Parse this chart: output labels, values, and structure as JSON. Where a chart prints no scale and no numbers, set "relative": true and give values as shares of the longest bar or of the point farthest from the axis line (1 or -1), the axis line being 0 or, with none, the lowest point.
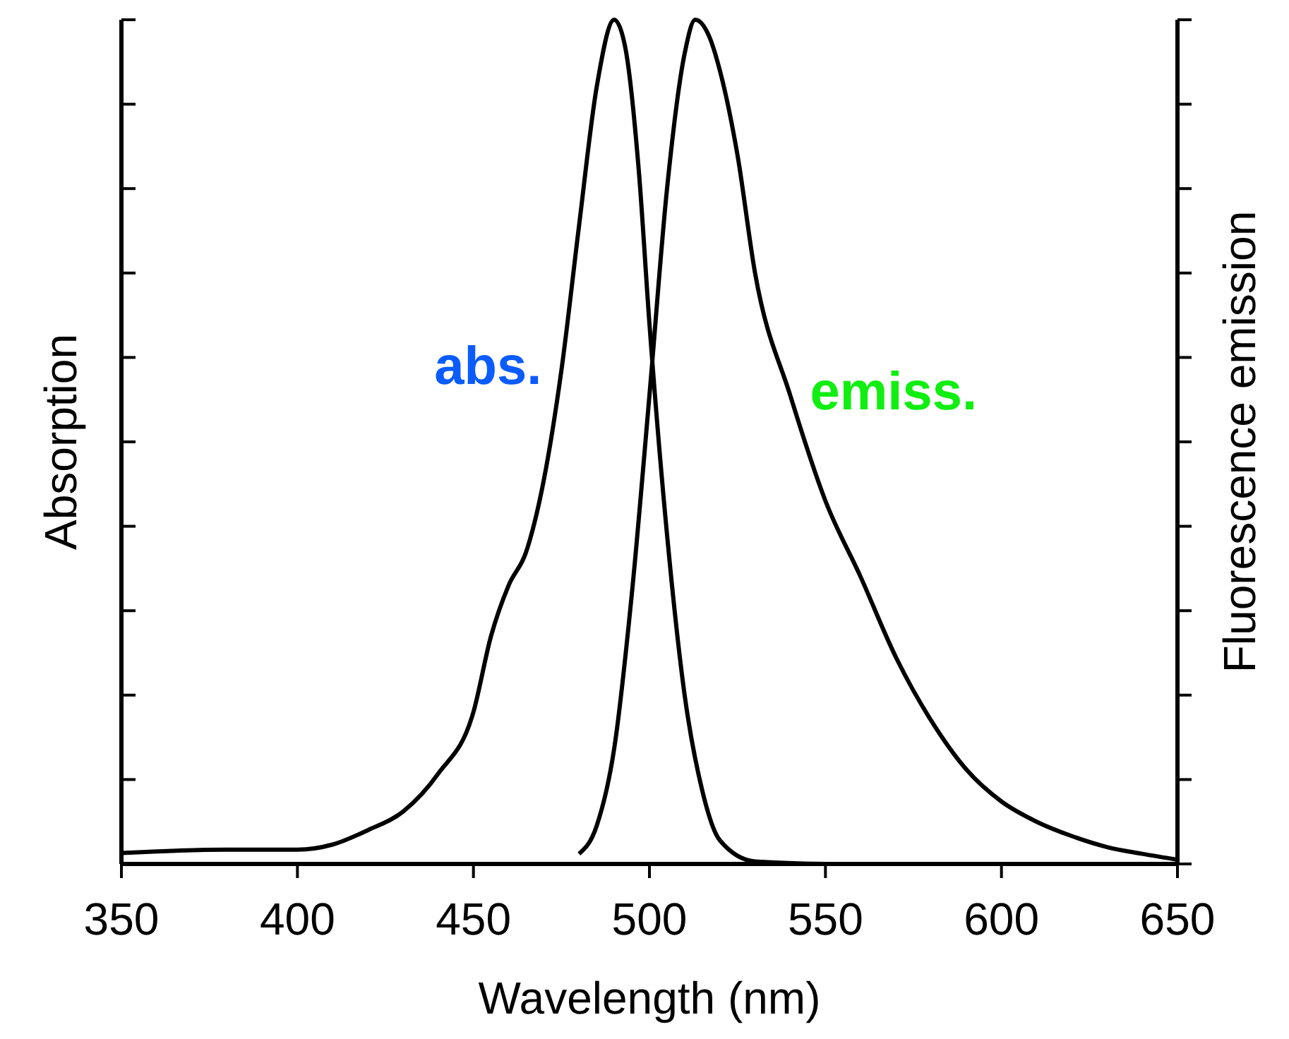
{
  "chart_data": {
    "type": "line",
    "relative": true,
    "xlabel": "Wavelength (nm)",
    "ylabel": "Absorption",
    "y2label": "Fluorescence emission",
    "xlim": [
      350,
      650
    ],
    "xticks": [
      350,
      400,
      450,
      500,
      550,
      600,
      650
    ],
    "grid": false,
    "marker": "none",
    "line_style": "solid",
    "series": [
      {
        "name": "abs.",
        "color": "#000000",
        "x": [
          350,
          380,
          400,
          410,
          420,
          430,
          440,
          450,
          455,
          460,
          465,
          470,
          475,
          480,
          485,
          490,
          493,
          497,
          500,
          505,
          510,
          515,
          520,
          530,
          550
        ],
        "values": [
          0.013,
          0.017,
          0.017,
          0.023,
          0.04,
          0.062,
          0.107,
          0.18,
          0.27,
          0.33,
          0.37,
          0.455,
          0.585,
          0.756,
          0.92,
          1.0,
          0.97,
          0.82,
          0.64,
          0.39,
          0.2,
          0.087,
          0.028,
          0.003,
          0
        ]
      },
      {
        "name": "emiss.",
        "color": "#000000",
        "x": [
          480,
          485,
          490,
          495,
          500,
          505,
          510,
          513,
          517,
          520,
          525,
          530,
          540,
          550,
          560,
          570,
          580,
          590,
          600,
          610,
          620,
          630,
          640,
          650
        ],
        "values": [
          0.012,
          0.045,
          0.137,
          0.32,
          0.555,
          0.8,
          0.96,
          1.0,
          0.98,
          0.94,
          0.84,
          0.7,
          0.555,
          0.43,
          0.34,
          0.245,
          0.17,
          0.112,
          0.074,
          0.05,
          0.033,
          0.02,
          0.012,
          0.005
        ]
      }
    ]
  }
}
